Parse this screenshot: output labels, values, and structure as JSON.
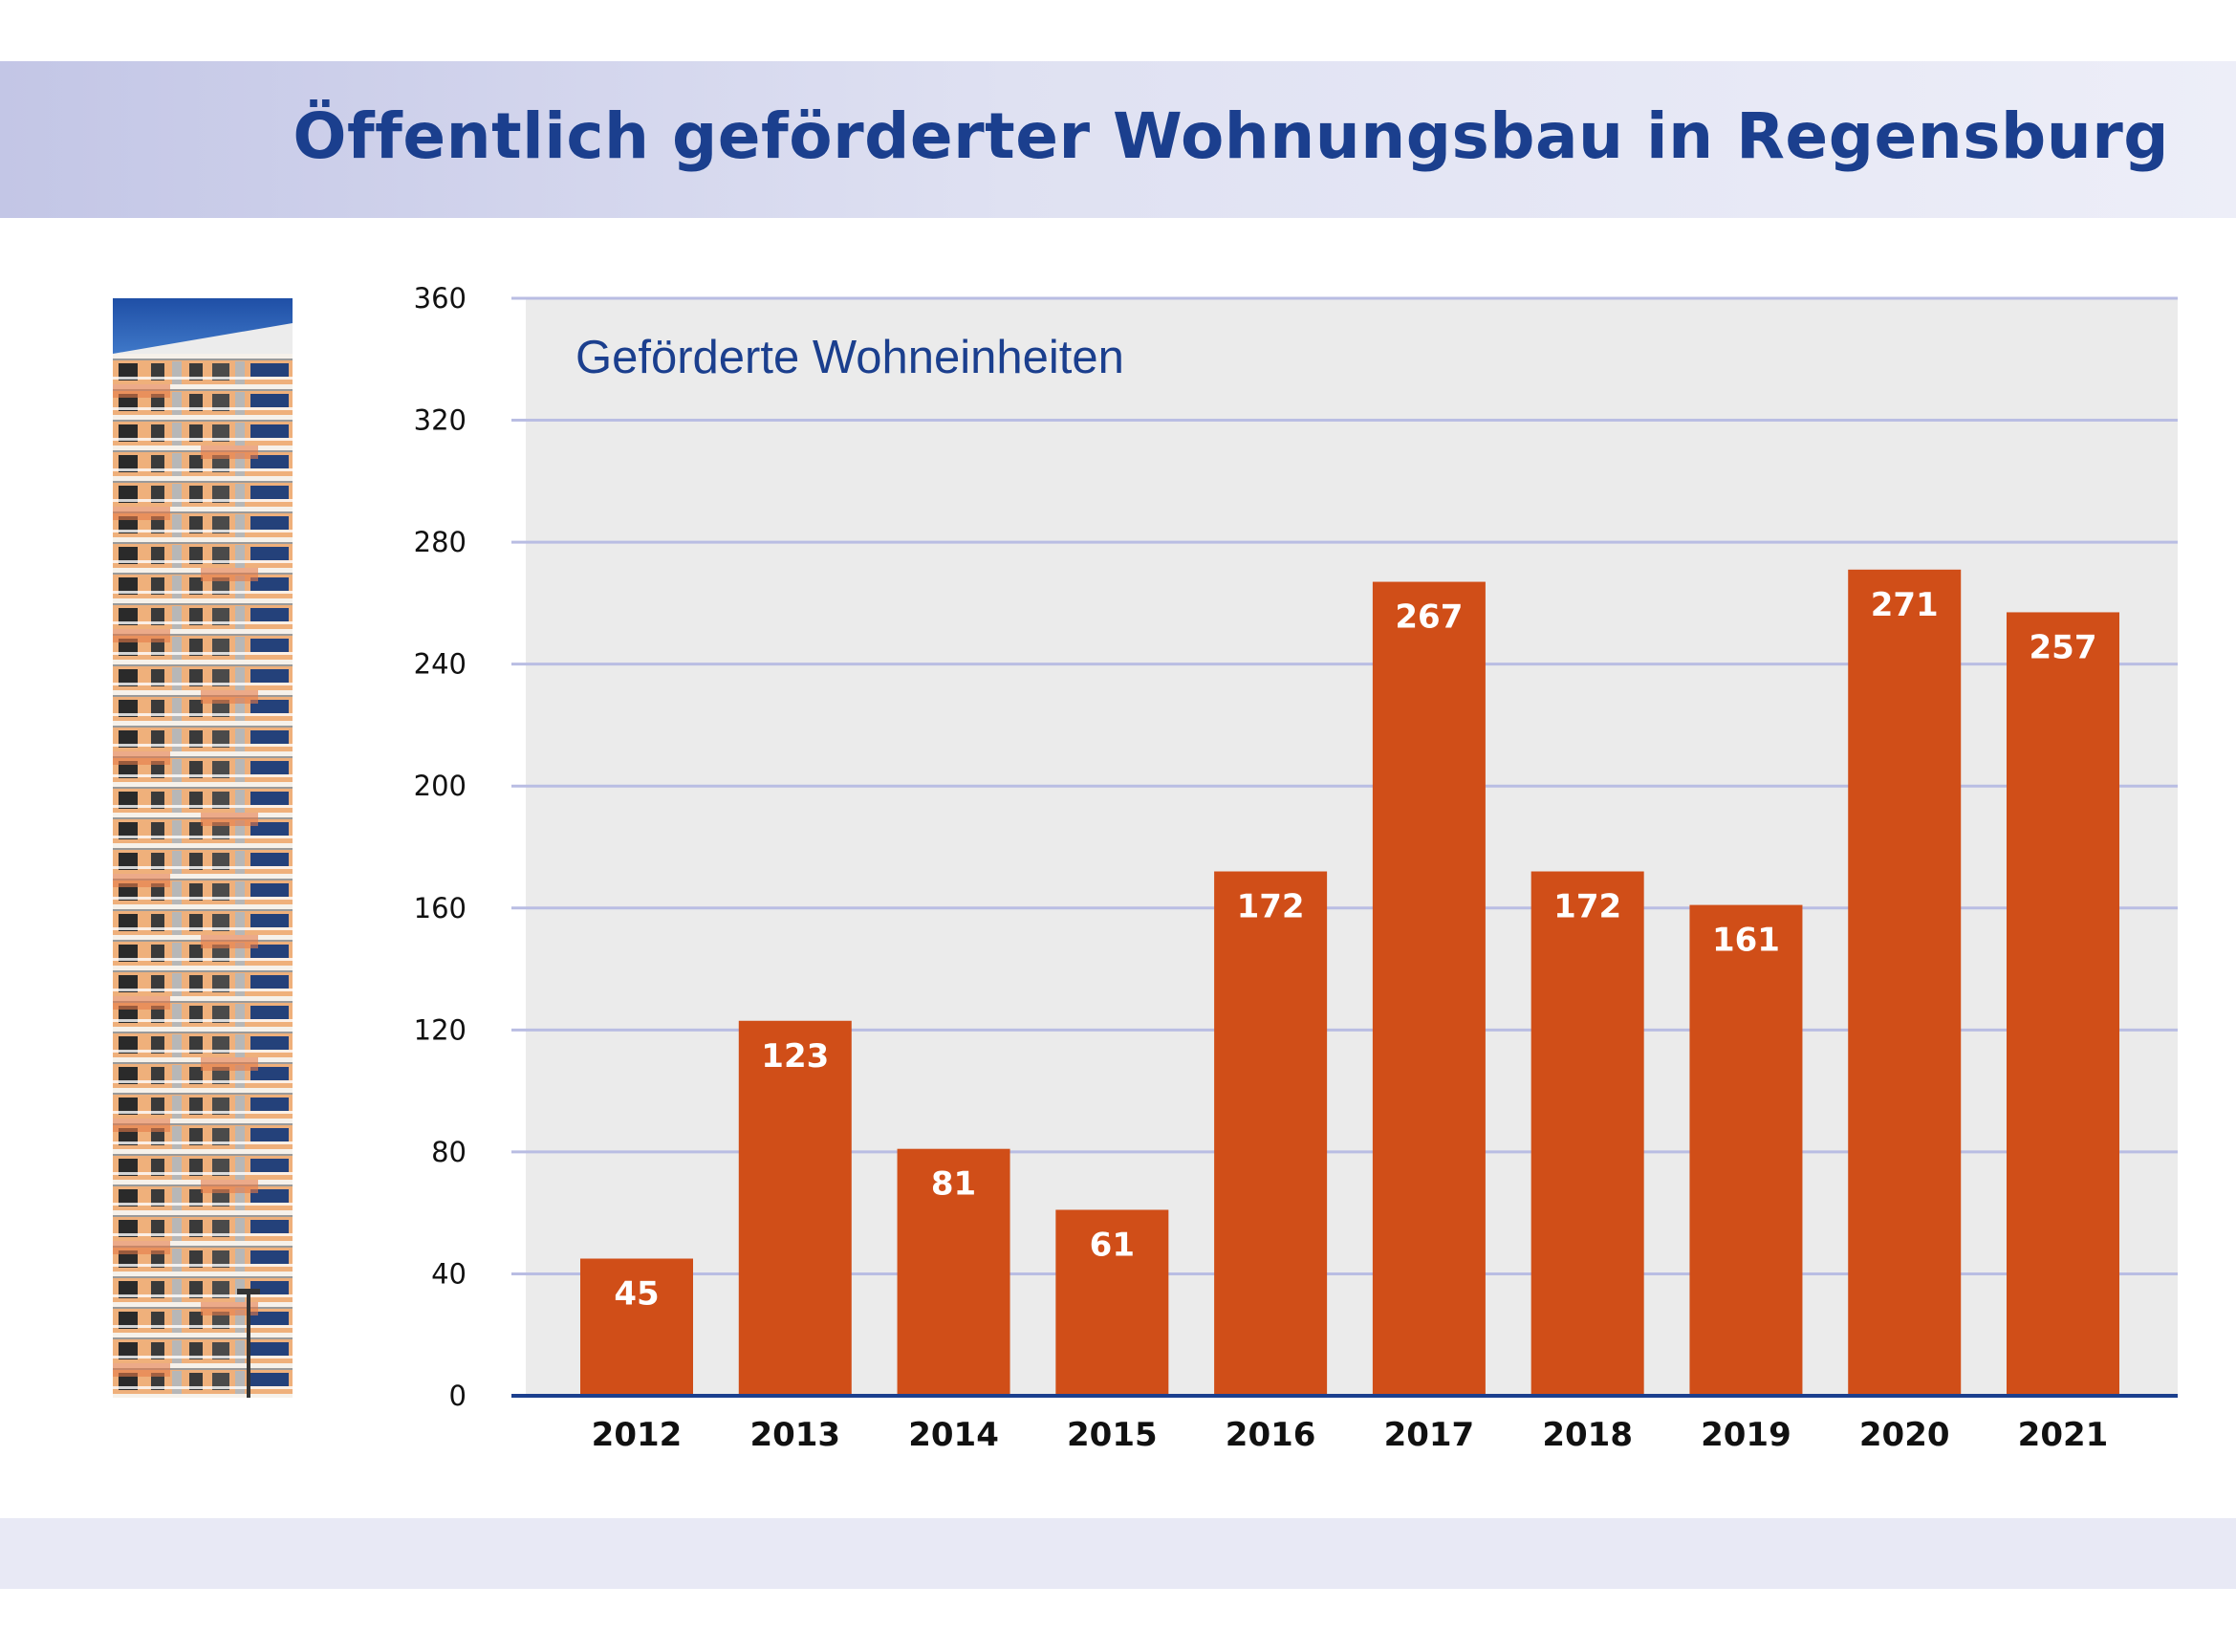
{
  "header": {
    "title": "Öffentlich geförderter Wohnungsbau in Regensburg"
  },
  "colors": {
    "bar": "#d04e18",
    "plot_background": "#ebebeb",
    "gridline": "#b9bde3",
    "axis": "#1b3f8e",
    "title": "#1b3f8e",
    "header_band": "#c3c6e6",
    "footer_band": "#e8e9f5"
  },
  "photo": {
    "icon": "high-rise-apartment-building"
  },
  "chart_data": {
    "type": "bar",
    "title": "Geförderte Wohneinheiten",
    "xlabel": "",
    "ylabel": "",
    "categories": [
      "2012",
      "2013",
      "2014",
      "2015",
      "2016",
      "2017",
      "2018",
      "2019",
      "2020",
      "2021"
    ],
    "values": [
      45,
      123,
      81,
      61,
      172,
      267,
      172,
      161,
      271,
      257
    ],
    "ylim": [
      0,
      360
    ],
    "yticks": [
      0,
      40,
      80,
      120,
      160,
      200,
      240,
      280,
      320,
      360
    ],
    "grid": true,
    "data_labels": "inside-top",
    "legend": "none"
  }
}
